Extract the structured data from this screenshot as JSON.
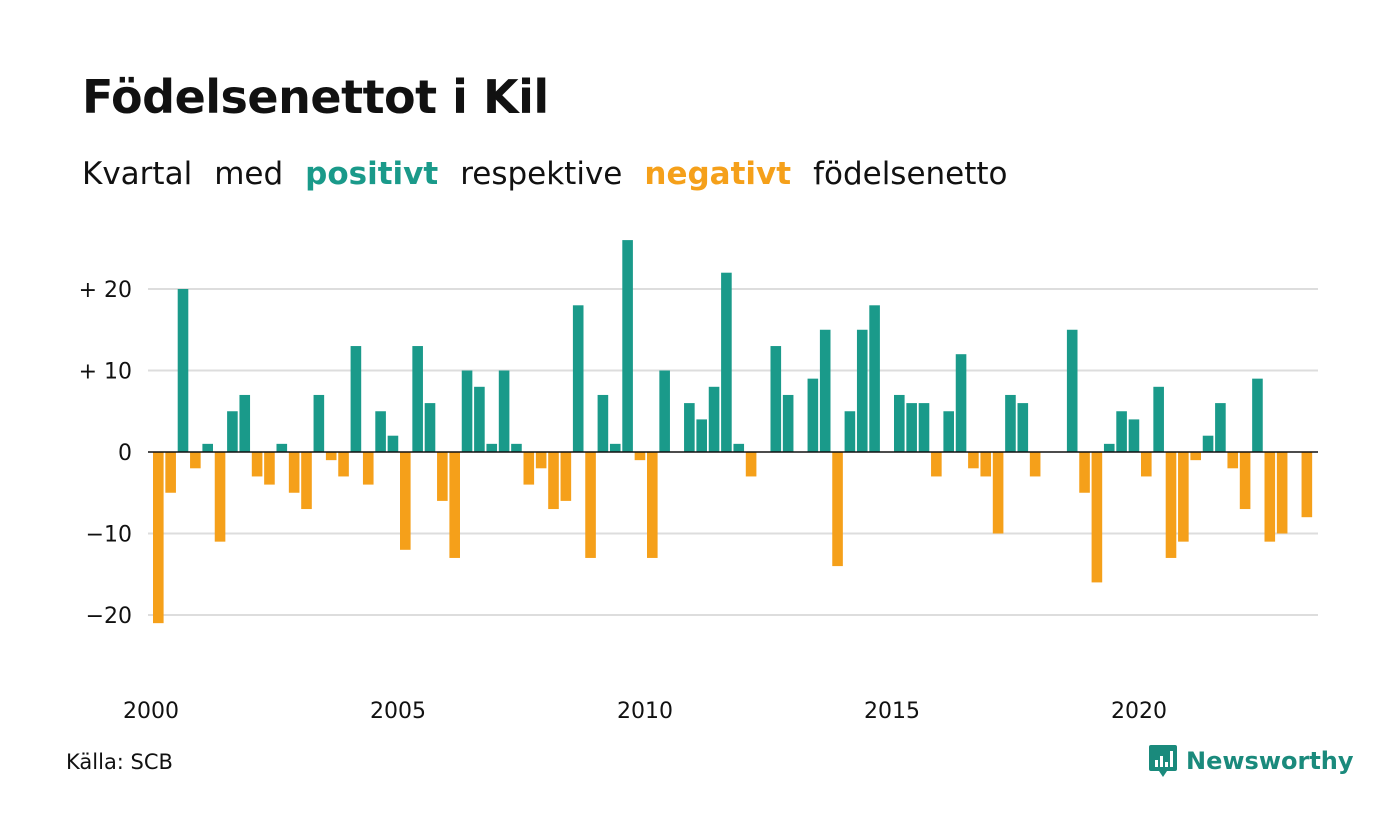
{
  "title": "Födelsenettot i Kil",
  "subtitle": {
    "part1": "Kvartal",
    "part2": "med",
    "positive_word": "positivt",
    "part3": "respektive",
    "negative_word": "negativt",
    "part4": "födelsenetto"
  },
  "source": "Källa: SCB",
  "brand": "Newsworthy",
  "colors": {
    "positive": "#1a9a8a",
    "negative": "#f5a01a",
    "grid": "#dddddd",
    "zero": "#111111"
  },
  "chart_data": {
    "type": "bar",
    "x_start": "2000 Q1",
    "ylim": [
      -25,
      27
    ],
    "yticks": [
      {
        "value": 20,
        "label": "+ 20"
      },
      {
        "value": 10,
        "label": "+ 10"
      },
      {
        "value": 0,
        "label": "0"
      },
      {
        "value": -10,
        "label": "−10"
      },
      {
        "value": -20,
        "label": "−20"
      }
    ],
    "xticks": [
      "2000",
      "2005",
      "2010",
      "2015",
      "2020"
    ],
    "values": [
      -21,
      -5,
      20,
      -2,
      1,
      -11,
      5,
      7,
      -3,
      -4,
      1,
      -5,
      -7,
      7,
      -1,
      -3,
      13,
      -4,
      5,
      2,
      -12,
      13,
      6,
      -6,
      -13,
      10,
      8,
      1,
      10,
      1,
      -4,
      -2,
      -7,
      -6,
      18,
      -13,
      7,
      1,
      26,
      -1,
      -13,
      10,
      0,
      6,
      4,
      8,
      22,
      1,
      -3,
      0,
      13,
      7,
      0,
      9,
      15,
      -14,
      5,
      15,
      18,
      0,
      7,
      6,
      6,
      -3,
      5,
      12,
      -2,
      -3,
      -10,
      7,
      6,
      -3,
      0,
      0,
      15,
      -5,
      -16,
      1,
      5,
      4,
      -3,
      8,
      -13,
      -11,
      -1,
      2,
      6,
      -2,
      -7,
      9,
      -11,
      -10,
      0,
      -8
    ]
  }
}
